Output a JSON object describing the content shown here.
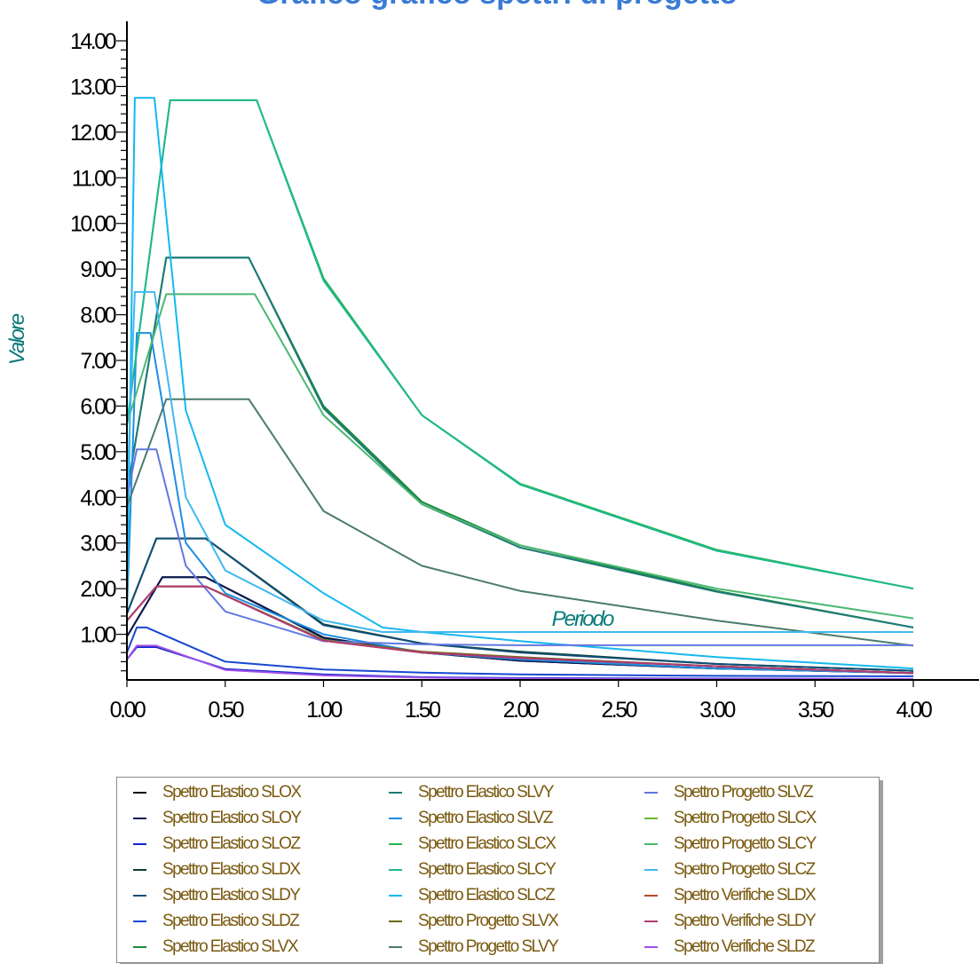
{
  "chart_data": {
    "type": "line",
    "title": "Grafico grafico spettri di progetto",
    "xlabel": "Periodo",
    "ylabel": "Valore",
    "xlim": [
      0,
      4.0
    ],
    "ylim": [
      0,
      14.0
    ],
    "x_ticks": [
      "0.00",
      "0.50",
      "1.00",
      "1.50",
      "2.00",
      "2.50",
      "3.00",
      "3.50",
      "4.00"
    ],
    "y_ticks": [
      "1.00",
      "2.00",
      "3.00",
      "4.00",
      "5.00",
      "6.00",
      "7.00",
      "8.00",
      "9.00",
      "10.00",
      "11.00",
      "12.00",
      "13.00",
      "14.00"
    ],
    "grid": false,
    "legend_position": "bottom",
    "series": [
      {
        "name": "Spettro Elastico SLOX",
        "color": "#0a0a0a",
        "points": [
          [
            0,
            0.95
          ],
          [
            0.18,
            2.25
          ],
          [
            0.4,
            2.25
          ],
          [
            1.0,
            0.93
          ],
          [
            1.5,
            0.6
          ],
          [
            2.0,
            0.42
          ],
          [
            3.0,
            0.25
          ],
          [
            4.0,
            0.15
          ]
        ]
      },
      {
        "name": "Spettro Elastico SLOY",
        "color": "#0c1a55",
        "points": [
          [
            0,
            0.95
          ],
          [
            0.18,
            2.25
          ],
          [
            0.4,
            2.25
          ],
          [
            1.0,
            0.92
          ],
          [
            1.5,
            0.6
          ],
          [
            2.0,
            0.42
          ],
          [
            3.0,
            0.25
          ],
          [
            4.0,
            0.15
          ]
        ]
      },
      {
        "name": "Spettro Elastico SLOZ",
        "color": "#1028c8",
        "points": [
          [
            0,
            0.45
          ],
          [
            0.05,
            0.72
          ],
          [
            0.15,
            0.72
          ],
          [
            0.5,
            0.24
          ],
          [
            1.0,
            0.12
          ],
          [
            1.5,
            0.06
          ],
          [
            2.0,
            0.04
          ],
          [
            3.0,
            0.03
          ],
          [
            4.0,
            0.02
          ]
        ]
      },
      {
        "name": "Spettro Elastico SLDX",
        "color": "#0a4028",
        "points": [
          [
            0,
            1.45
          ],
          [
            0.15,
            3.1
          ],
          [
            0.4,
            3.1
          ],
          [
            1.0,
            1.22
          ],
          [
            1.5,
            0.8
          ],
          [
            2.0,
            0.62
          ],
          [
            3.0,
            0.35
          ],
          [
            4.0,
            0.2
          ]
        ]
      },
      {
        "name": "Spettro Elastico SLDY",
        "color": "#0f4e78",
        "points": [
          [
            0,
            1.45
          ],
          [
            0.15,
            3.1
          ],
          [
            0.4,
            3.1
          ],
          [
            1.0,
            1.2
          ],
          [
            1.5,
            0.8
          ],
          [
            2.0,
            0.6
          ],
          [
            3.0,
            0.35
          ],
          [
            4.0,
            0.2
          ]
        ]
      },
      {
        "name": "Spettro Elastico SLDZ",
        "color": "#1848d0",
        "points": [
          [
            0,
            0.6
          ],
          [
            0.05,
            1.15
          ],
          [
            0.1,
            1.15
          ],
          [
            0.5,
            0.4
          ],
          [
            1.0,
            0.23
          ],
          [
            1.5,
            0.16
          ],
          [
            2.0,
            0.12
          ],
          [
            3.0,
            0.09
          ],
          [
            4.0,
            0.08
          ]
        ]
      },
      {
        "name": "Spettro Elastico SLVX",
        "color": "#188a3a",
        "points": [
          [
            0,
            4.1
          ],
          [
            0.2,
            9.25
          ],
          [
            0.62,
            9.25
          ],
          [
            1.0,
            6.0
          ],
          [
            1.5,
            3.9
          ],
          [
            2.0,
            2.95
          ],
          [
            3.0,
            1.95
          ],
          [
            4.0,
            1.15
          ]
        ]
      },
      {
        "name": "Spettro Elastico SLVY",
        "color": "#1f7a78",
        "points": [
          [
            0,
            4.1
          ],
          [
            0.2,
            9.25
          ],
          [
            0.62,
            9.25
          ],
          [
            1.0,
            5.95
          ],
          [
            1.5,
            3.85
          ],
          [
            2.0,
            2.9
          ],
          [
            3.0,
            1.93
          ],
          [
            4.0,
            1.15
          ]
        ]
      },
      {
        "name": "Spettro Elastico SLVZ",
        "color": "#1f8ee0",
        "points": [
          [
            0,
            1.5
          ],
          [
            0.05,
            7.6
          ],
          [
            0.12,
            7.6
          ],
          [
            0.3,
            3.0
          ],
          [
            0.5,
            1.9
          ],
          [
            1.0,
            1.0
          ],
          [
            1.5,
            0.6
          ],
          [
            2.0,
            0.45
          ],
          [
            3.0,
            0.25
          ],
          [
            4.0,
            0.15
          ]
        ]
      },
      {
        "name": "Spettro Elastico SLCX",
        "color": "#22b84a",
        "points": [
          [
            0,
            5.6
          ],
          [
            0.22,
            12.7
          ],
          [
            0.66,
            12.7
          ],
          [
            1.0,
            8.8
          ],
          [
            1.5,
            5.8
          ],
          [
            2.0,
            4.3
          ],
          [
            3.0,
            2.85
          ],
          [
            4.0,
            2.0
          ]
        ]
      },
      {
        "name": "Spettro Elastico SLCY",
        "color": "#20b890",
        "points": [
          [
            0,
            5.6
          ],
          [
            0.22,
            12.7
          ],
          [
            0.66,
            12.7
          ],
          [
            1.0,
            8.75
          ],
          [
            1.5,
            5.8
          ],
          [
            2.0,
            4.28
          ],
          [
            3.0,
            2.83
          ],
          [
            4.0,
            2.0
          ]
        ]
      },
      {
        "name": "Spettro Elastico SLCZ",
        "color": "#15b8f0",
        "points": [
          [
            0,
            1.5
          ],
          [
            0.04,
            12.75
          ],
          [
            0.14,
            12.75
          ],
          [
            0.3,
            5.9
          ],
          [
            0.5,
            3.4
          ],
          [
            1.0,
            1.9
          ],
          [
            1.3,
            1.15
          ],
          [
            1.5,
            1.05
          ],
          [
            2.0,
            0.85
          ],
          [
            3.0,
            0.5
          ],
          [
            4.0,
            0.25
          ]
        ]
      },
      {
        "name": "Spettro Progetto SLVX",
        "color": "#6a6a10",
        "points": [
          [
            0,
            1.3
          ],
          [
            0.15,
            2.05
          ],
          [
            0.4,
            2.05
          ],
          [
            1.0,
            0.88
          ],
          [
            1.5,
            0.62
          ],
          [
            2.0,
            0.5
          ],
          [
            3.0,
            0.3
          ],
          [
            4.0,
            0.15
          ]
        ]
      },
      {
        "name": "Spettro Progetto SLVY",
        "color": "#4a7a6e",
        "points": [
          [
            0,
            3.8
          ],
          [
            0.2,
            6.15
          ],
          [
            0.62,
            6.15
          ],
          [
            1.0,
            3.7
          ],
          [
            1.5,
            2.5
          ],
          [
            2.0,
            1.95
          ],
          [
            3.0,
            1.3
          ],
          [
            4.0,
            0.75
          ]
        ]
      },
      {
        "name": "Spettro Progetto SLVZ",
        "color": "#6078e0",
        "points": [
          [
            0,
            4.0
          ],
          [
            0.05,
            5.05
          ],
          [
            0.15,
            5.05
          ],
          [
            0.3,
            2.5
          ],
          [
            0.5,
            1.5
          ],
          [
            1.0,
            0.85
          ],
          [
            1.5,
            0.78
          ],
          [
            2.0,
            0.76
          ],
          [
            3.0,
            0.76
          ],
          [
            4.0,
            0.76
          ]
        ]
      },
      {
        "name": "Spettro Progetto SLCX",
        "color": "#6ab830",
        "points": [
          [
            0,
            1.3
          ],
          [
            0.15,
            2.05
          ],
          [
            0.4,
            2.05
          ],
          [
            1.0,
            0.87
          ],
          [
            1.5,
            0.6
          ],
          [
            2.0,
            0.48
          ],
          [
            3.0,
            0.3
          ],
          [
            4.0,
            0.15
          ]
        ]
      },
      {
        "name": "Spettro Progetto SLCY",
        "color": "#4ab870",
        "points": [
          [
            0,
            5.6
          ],
          [
            0.2,
            8.45
          ],
          [
            0.65,
            8.45
          ],
          [
            1.0,
            5.8
          ],
          [
            1.5,
            3.85
          ],
          [
            2.0,
            2.95
          ],
          [
            3.0,
            2.0
          ],
          [
            4.0,
            1.35
          ]
        ]
      },
      {
        "name": "Spettro Progetto SLCZ",
        "color": "#40b8f0",
        "points": [
          [
            0,
            4.0
          ],
          [
            0.04,
            8.5
          ],
          [
            0.14,
            8.5
          ],
          [
            0.3,
            4.0
          ],
          [
            0.5,
            2.4
          ],
          [
            1.0,
            1.3
          ],
          [
            1.3,
            1.05
          ],
          [
            1.5,
            1.05
          ],
          [
            2.0,
            1.05
          ],
          [
            3.0,
            1.05
          ],
          [
            4.0,
            1.05
          ]
        ]
      },
      {
        "name": "Spettro Verifiche SLDX",
        "color": "#b84a20",
        "points": [
          [
            0,
            1.3
          ],
          [
            0.15,
            2.05
          ],
          [
            0.4,
            2.05
          ],
          [
            1.0,
            0.86
          ],
          [
            1.5,
            0.6
          ],
          [
            2.0,
            0.48
          ],
          [
            3.0,
            0.3
          ],
          [
            4.0,
            0.15
          ]
        ]
      },
      {
        "name": "Spettro Verifiche SLDY",
        "color": "#b03a78",
        "points": [
          [
            0,
            1.3
          ],
          [
            0.15,
            2.05
          ],
          [
            0.4,
            2.05
          ],
          [
            1.0,
            0.86
          ],
          [
            1.5,
            0.6
          ],
          [
            2.0,
            0.48
          ],
          [
            3.0,
            0.3
          ],
          [
            4.0,
            0.15
          ]
        ]
      },
      {
        "name": "Spettro Verifiche SLDZ",
        "color": "#a050e8",
        "points": [
          [
            0,
            0.45
          ],
          [
            0.05,
            0.75
          ],
          [
            0.15,
            0.75
          ],
          [
            0.5,
            0.22
          ],
          [
            1.0,
            0.1
          ],
          [
            1.5,
            0.05
          ],
          [
            2.0,
            0.03
          ],
          [
            3.0,
            0.02
          ],
          [
            4.0,
            0.02
          ]
        ]
      }
    ]
  }
}
